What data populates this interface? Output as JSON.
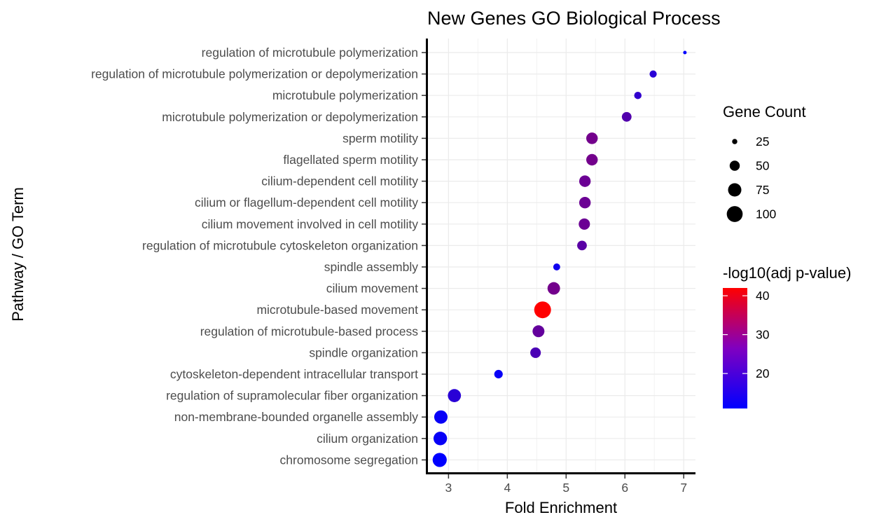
{
  "chart_data": {
    "type": "scatter",
    "title": "New Genes GO Biological Process",
    "xlabel": "Fold Enrichment",
    "ylabel": "Pathway / GO Term",
    "xlim": [
      2.65,
      7.2
    ],
    "x_ticks": [
      3,
      4,
      5,
      6,
      7
    ],
    "grid": true,
    "legend_position": "right",
    "categories": [
      "regulation of microtubule polymerization",
      "regulation of microtubule polymerization or depolymerization",
      "microtubule polymerization",
      "microtubule polymerization or depolymerization",
      "sperm motility",
      "flagellated sperm motility",
      "cilium-dependent cell motility",
      "cilium or flagellum-dependent cell motility",
      "cilium movement involved in cell motility",
      "regulation of microtubule cytoskeleton organization",
      "spindle assembly",
      "cilium movement",
      "microtubule-based movement",
      "regulation of microtubule-based process",
      "spindle organization",
      "cytoskeleton-dependent intracellular transport",
      "regulation of supramolecular fiber organization",
      "non-membrane-bounded organelle assembly",
      "cilium organization",
      "chromosome segregation"
    ],
    "points": [
      {
        "term": "regulation of microtubule polymerization",
        "fold_enrichment": 7.02,
        "gene_count": 20,
        "neg_log10_adj_p": 11
      },
      {
        "term": "regulation of microtubule polymerization or depolymerization",
        "fold_enrichment": 6.48,
        "gene_count": 33,
        "neg_log10_adj_p": 16
      },
      {
        "term": "microtubule polymerization",
        "fold_enrichment": 6.22,
        "gene_count": 34,
        "neg_log10_adj_p": 17
      },
      {
        "term": "microtubule polymerization or depolymerization",
        "fold_enrichment": 6.03,
        "gene_count": 47,
        "neg_log10_adj_p": 21
      },
      {
        "term": "sperm motility",
        "fold_enrichment": 5.44,
        "gene_count": 60,
        "neg_log10_adj_p": 25
      },
      {
        "term": "flagellated sperm motility",
        "fold_enrichment": 5.44,
        "gene_count": 60,
        "neg_log10_adj_p": 25
      },
      {
        "term": "cilium-dependent cell motility",
        "fold_enrichment": 5.32,
        "gene_count": 60,
        "neg_log10_adj_p": 24
      },
      {
        "term": "cilium or flagellum-dependent cell motility",
        "fold_enrichment": 5.32,
        "gene_count": 60,
        "neg_log10_adj_p": 24
      },
      {
        "term": "cilium movement involved in cell motility",
        "fold_enrichment": 5.31,
        "gene_count": 58,
        "neg_log10_adj_p": 24
      },
      {
        "term": "regulation of microtubule cytoskeleton organization",
        "fold_enrichment": 5.27,
        "gene_count": 47,
        "neg_log10_adj_p": 22
      },
      {
        "term": "spindle assembly",
        "fold_enrichment": 4.84,
        "gene_count": 32,
        "neg_log10_adj_p": 13
      },
      {
        "term": "cilium movement",
        "fold_enrichment": 4.79,
        "gene_count": 68,
        "neg_log10_adj_p": 25
      },
      {
        "term": "microtubule-based movement",
        "fold_enrichment": 4.6,
        "gene_count": 110,
        "neg_log10_adj_p": 42
      },
      {
        "term": "regulation of microtubule-based process",
        "fold_enrichment": 4.53,
        "gene_count": 63,
        "neg_log10_adj_p": 23
      },
      {
        "term": "spindle organization",
        "fold_enrichment": 4.48,
        "gene_count": 53,
        "neg_log10_adj_p": 20
      },
      {
        "term": "cytoskeleton-dependent intracellular transport",
        "fold_enrichment": 3.85,
        "gene_count": 40,
        "neg_log10_adj_p": 12
      },
      {
        "term": "regulation of supramolecular fiber organization",
        "fold_enrichment": 3.1,
        "gene_count": 73,
        "neg_log10_adj_p": 16
      },
      {
        "term": "non-membrane-bounded organelle assembly",
        "fold_enrichment": 2.87,
        "gene_count": 75,
        "neg_log10_adj_p": 12
      },
      {
        "term": "cilium organization",
        "fold_enrichment": 2.86,
        "gene_count": 77,
        "neg_log10_adj_p": 12
      },
      {
        "term": "chromosome segregation",
        "fold_enrichment": 2.85,
        "gene_count": 82,
        "neg_log10_adj_p": 11
      }
    ],
    "size_legend": {
      "title": "Gene Count",
      "breaks": [
        25,
        50,
        75,
        100
      ],
      "labels": [
        "25",
        "50",
        "75",
        "100"
      ],
      "domain": [
        20,
        110
      ]
    },
    "color_legend": {
      "title": "-log10(adj p-value)",
      "breaks": [
        20,
        30,
        40
      ],
      "labels": [
        "20",
        "30",
        "40"
      ],
      "domain": [
        11,
        42
      ],
      "low_color": "#0000FF",
      "high_color": "#FF0000"
    }
  }
}
